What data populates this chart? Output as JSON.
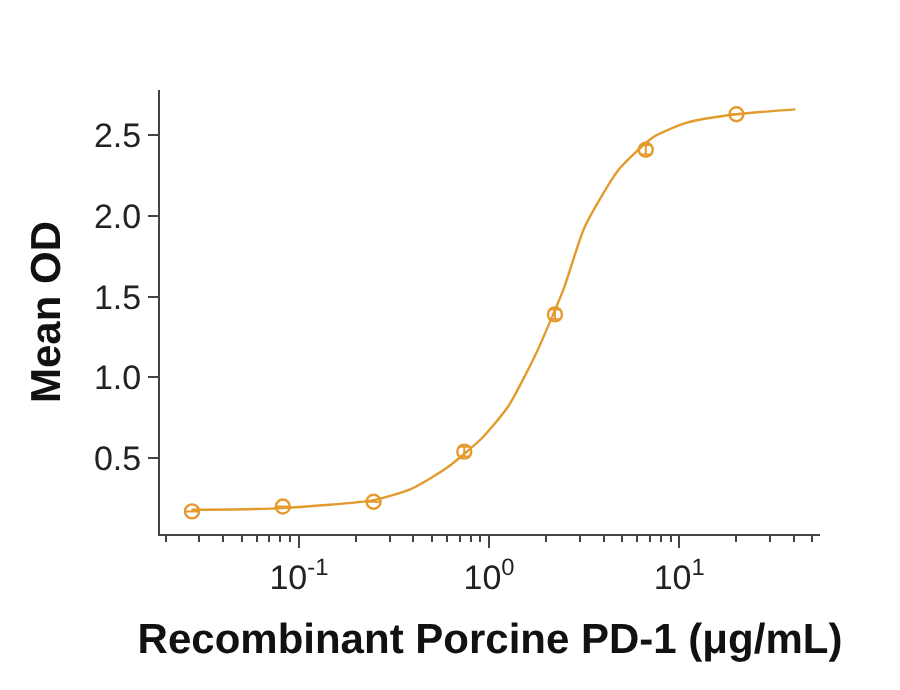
{
  "chart_data": {
    "type": "scatter",
    "xlabel": "Recombinant Porcine PD-1 (μg/mL)",
    "ylabel": "Mean OD",
    "log": "x",
    "grid": false,
    "xlim": [
      0.0186,
      55
    ],
    "ylim": [
      0.03,
      2.78
    ],
    "xticks": [
      {
        "value": 0.02,
        "label": null
      },
      {
        "value": 0.03,
        "label": null
      },
      {
        "value": 0.04,
        "label": null
      },
      {
        "value": 0.05,
        "label": null
      },
      {
        "value": 0.06,
        "label": null
      },
      {
        "value": 0.07,
        "label": null
      },
      {
        "value": 0.08,
        "label": null
      },
      {
        "value": 0.09,
        "label": null
      },
      {
        "value": 0.1,
        "label": "10$^{-1}$"
      },
      {
        "value": 0.2,
        "label": null
      },
      {
        "value": 0.3,
        "label": null
      },
      {
        "value": 0.4,
        "label": null
      },
      {
        "value": 0.5,
        "label": null
      },
      {
        "value": 0.6,
        "label": null
      },
      {
        "value": 0.7,
        "label": null
      },
      {
        "value": 0.8,
        "label": null
      },
      {
        "value": 0.9,
        "label": null
      },
      {
        "value": 1,
        "label": "10$^{0}$"
      },
      {
        "value": 2,
        "label": null
      },
      {
        "value": 3,
        "label": null
      },
      {
        "value": 4,
        "label": null
      },
      {
        "value": 5,
        "label": null
      },
      {
        "value": 6,
        "label": null
      },
      {
        "value": 7,
        "label": null
      },
      {
        "value": 8,
        "label": null
      },
      {
        "value": 9,
        "label": null
      },
      {
        "value": 10,
        "label": "10$^{1}$"
      },
      {
        "value": 20,
        "label": null
      },
      {
        "value": 30,
        "label": null
      },
      {
        "value": 40,
        "label": null
      },
      {
        "value": 50,
        "label": null
      }
    ],
    "yticks": [
      {
        "value": 0.5,
        "label": "0.5"
      },
      {
        "value": 1,
        "label": "1.0"
      },
      {
        "value": 1.5,
        "label": "1.5"
      },
      {
        "value": 2,
        "label": "2.0"
      },
      {
        "value": 2.5,
        "label": "2.5"
      }
    ],
    "series": [
      {
        "marker": "circle",
        "color": "#e39b2d",
        "x": [
          0.0274,
          0.0823,
          0.247,
          0.741,
          2.22,
          6.67,
          20
        ],
        "values": [
          0.17,
          0.2,
          0.23,
          0.54,
          1.39,
          2.41,
          2.63
        ],
        "errors": [
          null,
          null,
          null,
          0.03,
          0.03,
          0.03,
          null
        ]
      },
      {
        "type": "line",
        "marker": "none",
        "color": "#e39b2d",
        "x": [
          0.0272,
          0.032,
          0.082,
          0.248,
          0.39,
          0.6,
          0.91,
          1.26,
          1.77,
          2.47,
          3.18,
          4.83,
          7.35,
          11.1,
          20,
          40.8
        ],
        "values": [
          0.18,
          0.18,
          0.19,
          0.24,
          0.31,
          0.44,
          0.62,
          0.82,
          1.15,
          1.55,
          1.93,
          2.29,
          2.49,
          2.58,
          2.63,
          2.66
        ]
      }
    ]
  }
}
